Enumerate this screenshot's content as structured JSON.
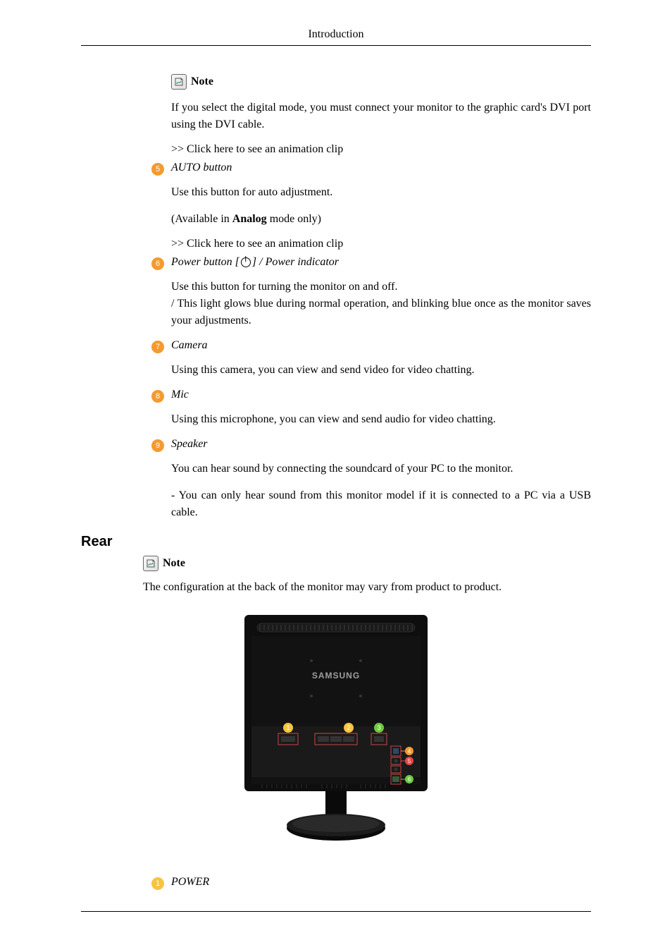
{
  "header": {
    "title": "Introduction"
  },
  "note": {
    "label": "Note",
    "body": "If you select the digital mode, you must connect your monitor to the graphic card's DVI port using the DVI cable.",
    "link": ">> Click here to see an animation clip"
  },
  "item5": {
    "num": "5",
    "color": "#f59a2e",
    "label": "AUTO button",
    "body1": "Use this button for auto adjustment.",
    "body2_pre": "(Available in ",
    "body2_bold": "Analog",
    "body2_post": " mode only)",
    "link": ">> Click here to see an animation clip"
  },
  "item6": {
    "num": "6",
    "color": "#f59a2e",
    "label_pre": "Power button [",
    "label_post": "] / Power indicator",
    "body": "Use this button for turning the monitor on and off.\n/ This light glows blue during normal operation, and blinking blue once as the monitor saves your adjustments."
  },
  "item7": {
    "num": "7",
    "color": "#f59a2e",
    "label": "Camera",
    "body": "Using this camera, you can view and send video for video chatting."
  },
  "item8": {
    "num": "8",
    "color": "#f59a2e",
    "label": "Mic",
    "body": "Using this microphone, you can view and send audio for video chatting."
  },
  "item9": {
    "num": "9",
    "color": "#f59a2e",
    "label": "Speaker",
    "body": "You can hear sound by connecting the soundcard of your PC to the monitor.",
    "body2": "- You can only hear sound from this monitor model if it is connected to a PC via a USB cable."
  },
  "rear": {
    "heading": "Rear",
    "note_label": "Note",
    "intro": "The configuration at the back of the monitor may vary from product to product."
  },
  "figure": {
    "brand": "SAMSUNG",
    "callouts": {
      "c1": {
        "num": "1",
        "color": "#f5c542"
      },
      "c2": {
        "num": "2",
        "color": "#f5c542"
      },
      "c3": {
        "num": "3",
        "color": "#6fc93f"
      },
      "c4": {
        "num": "4",
        "color": "#f59a2e"
      },
      "c5": {
        "num": "5",
        "color": "#e84545"
      },
      "c6": {
        "num": "6",
        "color": "#6fc93f"
      }
    }
  },
  "item_power": {
    "num": "1",
    "color": "#f5c542",
    "label": "POWER"
  }
}
